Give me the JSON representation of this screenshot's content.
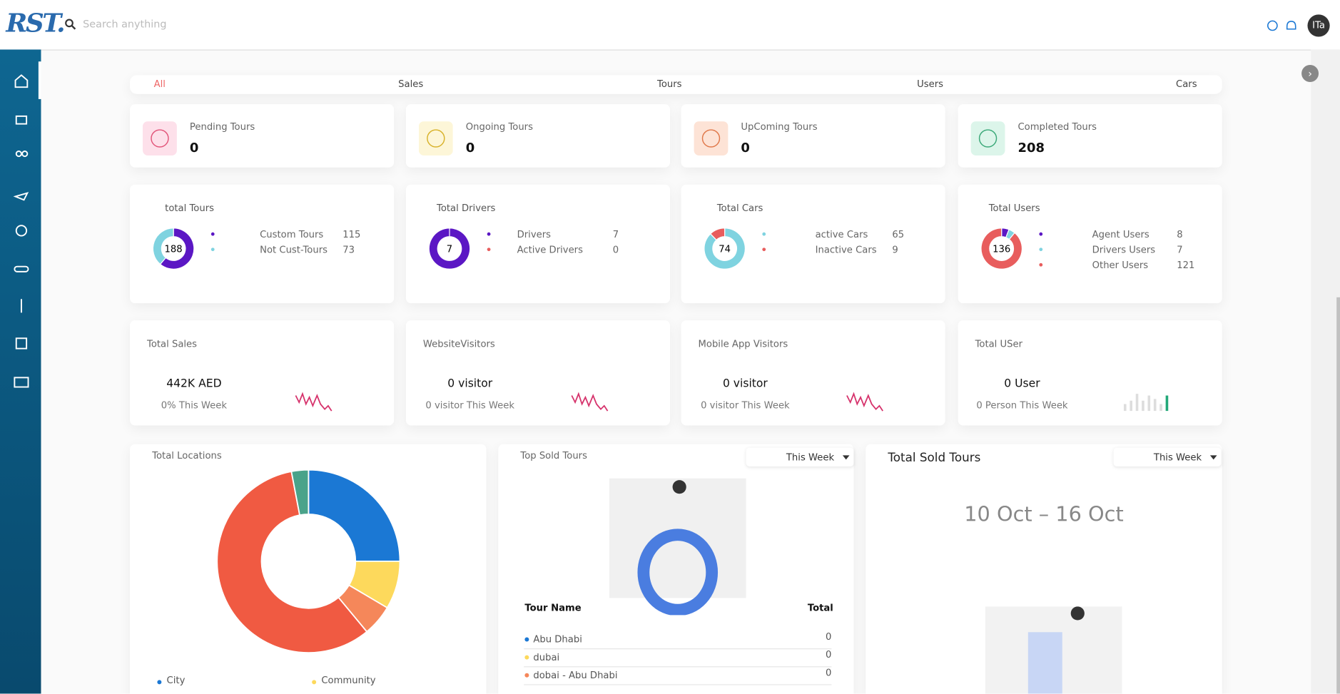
{
  "header": {
    "logo": "RST.",
    "search_placeholder": "Search anything",
    "avatar": "ITa"
  },
  "tabs": [
    "All",
    "Sales",
    "Tours",
    "Users",
    "Cars"
  ],
  "status_cards": [
    {
      "label": "Pending Tours",
      "value": 0
    },
    {
      "label": "Ongoing Tours",
      "value": 0
    },
    {
      "label": "UpComing Tours",
      "value": 0
    },
    {
      "label": "Completed Tours",
      "value": 208
    }
  ],
  "summary_cards": [
    {
      "title": "total Tours",
      "total": 188,
      "items": [
        {
          "name": "Custom Tours",
          "value": 115,
          "color": "#5b17c4"
        },
        {
          "name": "Not Cust-Tours",
          "value": 73,
          "color": "#7fd3e0"
        }
      ]
    },
    {
      "title": "Total Drivers",
      "total": 7,
      "items": [
        {
          "name": "Drivers",
          "value": 7,
          "color": "#5b17c4"
        },
        {
          "name": "Active Drivers",
          "value": 0,
          "color": "#e85d5d"
        }
      ]
    },
    {
      "title": "Total Cars",
      "total": 74,
      "items": [
        {
          "name": "active Cars",
          "value": 65,
          "color": "#7fd3e0"
        },
        {
          "name": "Inactive Cars",
          "value": 9,
          "color": "#e85d5d"
        }
      ]
    },
    {
      "title": "Total Users",
      "total": 136,
      "items": [
        {
          "name": "Agent Users",
          "value": 8,
          "color": "#5b17c4"
        },
        {
          "name": "Drivers Users",
          "value": 7,
          "color": "#7fd3e0"
        },
        {
          "name": "Other Users",
          "value": 121,
          "color": "#e85d5d"
        }
      ]
    }
  ],
  "stat_cards": [
    {
      "title": "Total Sales",
      "value": "442K AED",
      "note": "0% This Week"
    },
    {
      "title": "WebsiteVisitors",
      "value": "0 visitor",
      "note": "0 visitor This Week"
    },
    {
      "title": "Mobile App Visitors",
      "value": "0 visitor",
      "note": "0 visitor This Week"
    },
    {
      "title": "Total USer",
      "value": "0 User",
      "note": "0 Person This Week"
    }
  ],
  "locations": {
    "title": "Total Locations",
    "segments": [
      {
        "value": 25,
        "color": "#1b78d4"
      },
      {
        "value": 8.5,
        "color": "#fdd95c"
      },
      {
        "value": 5.5,
        "color": "#f5875a"
      },
      {
        "value": 58,
        "color": "#f05a42"
      },
      {
        "value": 3,
        "color": "#4aa38a"
      }
    ],
    "legend": [
      {
        "name": "City",
        "color": "#1b78d4"
      },
      {
        "name": "Community",
        "color": "#fdd95c"
      }
    ]
  },
  "top_sold": {
    "title": "Top Sold Tours",
    "filter": "This Week",
    "columns": [
      "Tour Name",
      "Total"
    ],
    "rows": [
      {
        "name": "Abu Dhabi",
        "total": 0,
        "color": "#1b78d4"
      },
      {
        "name": "dubai",
        "total": 0,
        "color": "#fdd95c"
      },
      {
        "name": "dobai - Abu Dhabi",
        "total": 0,
        "color": "#f5875a"
      }
    ]
  },
  "total_sold": {
    "title": "Total Sold Tours",
    "filter": "This Week",
    "range": "10 Oct – 16 Oct"
  }
}
